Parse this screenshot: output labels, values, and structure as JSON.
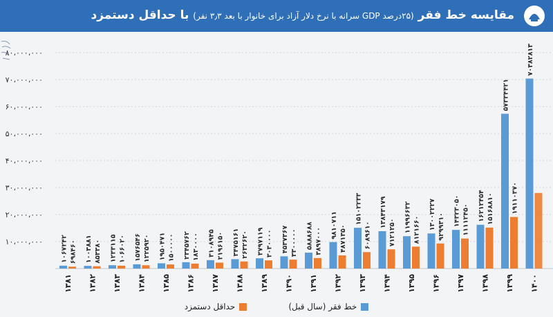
{
  "header": {
    "title": "مقایسه خط فقر",
    "subtitle": "(۲۵درصد GDP سرانه با نرخ دلار آزاد برای خانوار با بعد ۳٫۳ نفر)",
    "title_suffix": "با حداقل دستمزد"
  },
  "colors": {
    "header_bg": "#2f6fb7",
    "poverty_line": "#5b9bd5",
    "min_wage": "#ed7d31"
  },
  "icons": {
    "logo": "institution-logo",
    "stamp": "signature-stamp"
  },
  "chart_data": {
    "type": "bar",
    "title": "مقایسه خط فقر (۲۵درصد GDP سرانه با نرخ دلار آزاد برای خانوار با بعد ۳٫۳ نفر) با حداقل دستمزد",
    "xlabel": "",
    "ylabel": "",
    "ylim": [
      0,
      80000000
    ],
    "y_ticks": [
      0,
      10000000,
      20000000,
      30000000,
      40000000,
      50000000,
      60000000,
      70000000,
      80000000
    ],
    "y_tick_labels": [
      "",
      "۱۰،۰۰۰،۰۰۰",
      "۲۰،۰۰۰،۰۰۰",
      "۳۰،۰۰۰،۰۰۰",
      "۴۰،۰۰۰،۰۰۰",
      "۵۰،۰۰۰،۰۰۰",
      "۶۰،۰۰۰،۰۰۰",
      "۷۰،۰۰۰،۰۰۰",
      "۸۰،۰۰۰،۰۰۰"
    ],
    "grid": true,
    "legend_position": "bottom",
    "categories": [
      "۱۳۸۱",
      "۱۳۸۲",
      "۱۳۸۳",
      "۱۳۸۴",
      "۱۳۸۵",
      "۱۳۸۶",
      "۱۳۸۷",
      "۱۳۸۸",
      "۱۳۸۹",
      "۱۳۹۰",
      "۱۳۹۱",
      "۱۳۹۲",
      "۱۳۹۳",
      "۱۳۹۴",
      "۱۳۹۵",
      "۱۳۹۶",
      "۱۳۹۷",
      "۱۳۹۸",
      "۱۳۹۹",
      "۱۴۰۰"
    ],
    "series": [
      {
        "name": "خط فقر (سال قبل)",
        "values": [
          1067242,
          1003881,
          1233115,
          1576546,
          1950471,
          2345762,
          3108945,
          3475161,
          3797119,
          4537367,
          5888688,
          9810711,
          15102233,
          13843179,
          11996632,
          13002227,
          14323050,
          16212454,
          57334421,
          70382813
        ],
        "labels": [
          "۱۰۶۷۲۴۲",
          "۱۰۰۳۸۸۱",
          "۱۲۳۳۱۱۵",
          "۱۵۷۶۵۴۶",
          "۱۹۵۰۴۷۱",
          "۲۳۴۵۷۶۲",
          "۳۱۰۸۹۴۵",
          "۳۴۷۵۱۶۱",
          "۳۷۹۷۱۱۹",
          "۴۵۳۷۳۶۷",
          "۵۸۸۸۶۸۸",
          "۹۸۱۰۷۱۱",
          "۱۵۱۰۲۲۳۳",
          "۱۳۸۴۳۱۷۹",
          "۱۱۹۹۶۶۳۲",
          "۱۳۰۰۲۲۲۷",
          "۱۴۳۲۳۰۵۰",
          "۱۶۲۱۲۴۵۴",
          "۵۷۳۳۴۴۲۱",
          "۷۰۳۸۲۸۱۳"
        ]
      },
      {
        "name": "حداقل دستمزد",
        "values": [
          698460,
          853380,
          1066020,
          1225920,
          1500000,
          1830000,
          2196150,
          2632620,
          3030000,
          3300000,
          3897000,
          4871350,
          6089610,
          7121250,
          8121660,
          9299310,
          11112450,
          15168810,
          19110370,
          28000000
        ],
        "labels": [
          "۶۹۸۴۶۰",
          "۸۵۳۳۸۰",
          "۱۰۶۶۰۲۰",
          "۱۲۲۵۹۲۰",
          "۱۵۰۰۰۰۰",
          "۱۸۳۰۰۰۰",
          "۲۱۹۶۱۵۰",
          "۲۶۳۲۶۲۰",
          "۳۰۳۰۰۰۰",
          "۳۳۰۰۰۰۰",
          "۳۸۹۷۰۰۰",
          "۴۸۷۱۳۵۰",
          "۶۰۸۹۶۱۰",
          "۷۱۲۱۲۵۰",
          "۸۱۲۱۶۶۰",
          "۹۲۹۹۳۱۰",
          "۱۱۱۱۲۴۵۰",
          "۱۵۱۶۸۸۱۰",
          "۱۹۱۱۰۳۷۰",
          ""
        ]
      }
    ]
  }
}
